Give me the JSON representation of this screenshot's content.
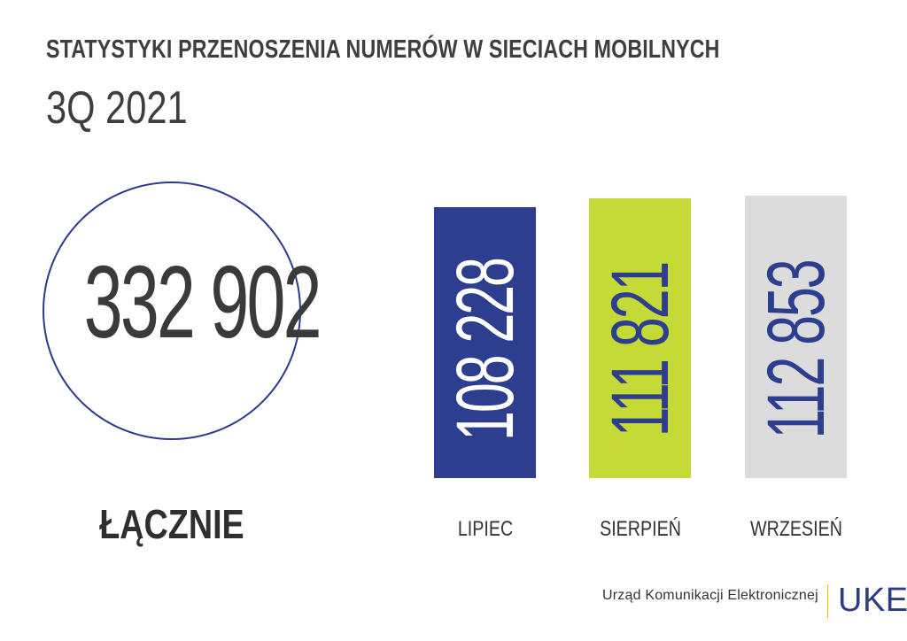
{
  "header": {
    "title": "STATYSTYKI PRZENOSZENIA NUMERÓW W SIECIACH MOBILNYCH",
    "period": "3Q 2021"
  },
  "total": {
    "value": "332 902",
    "label": "ŁĄCZNIE"
  },
  "chart_data": {
    "type": "bar",
    "categories": [
      "LIPIEC",
      "SIERPIEŃ",
      "WRZESIEŃ"
    ],
    "values": [
      108228,
      111821,
      112853
    ],
    "value_labels": [
      "108 228",
      "111 821",
      "112 853"
    ],
    "bar_colors": [
      "#2d3e8f",
      "#c5d937",
      "#dcdcdc"
    ],
    "label_colors": [
      "#ffffff",
      "#2d3e8f",
      "#2d3e8f"
    ],
    "title": "",
    "xlabel": "",
    "ylabel": "",
    "grid": false,
    "legend": "none"
  },
  "footer": {
    "organization": "Urząd Komunikacji Elektronicznej",
    "logo": "UKE"
  },
  "colors": {
    "accent": "#2d3a8c",
    "text": "#3e3e3e"
  }
}
